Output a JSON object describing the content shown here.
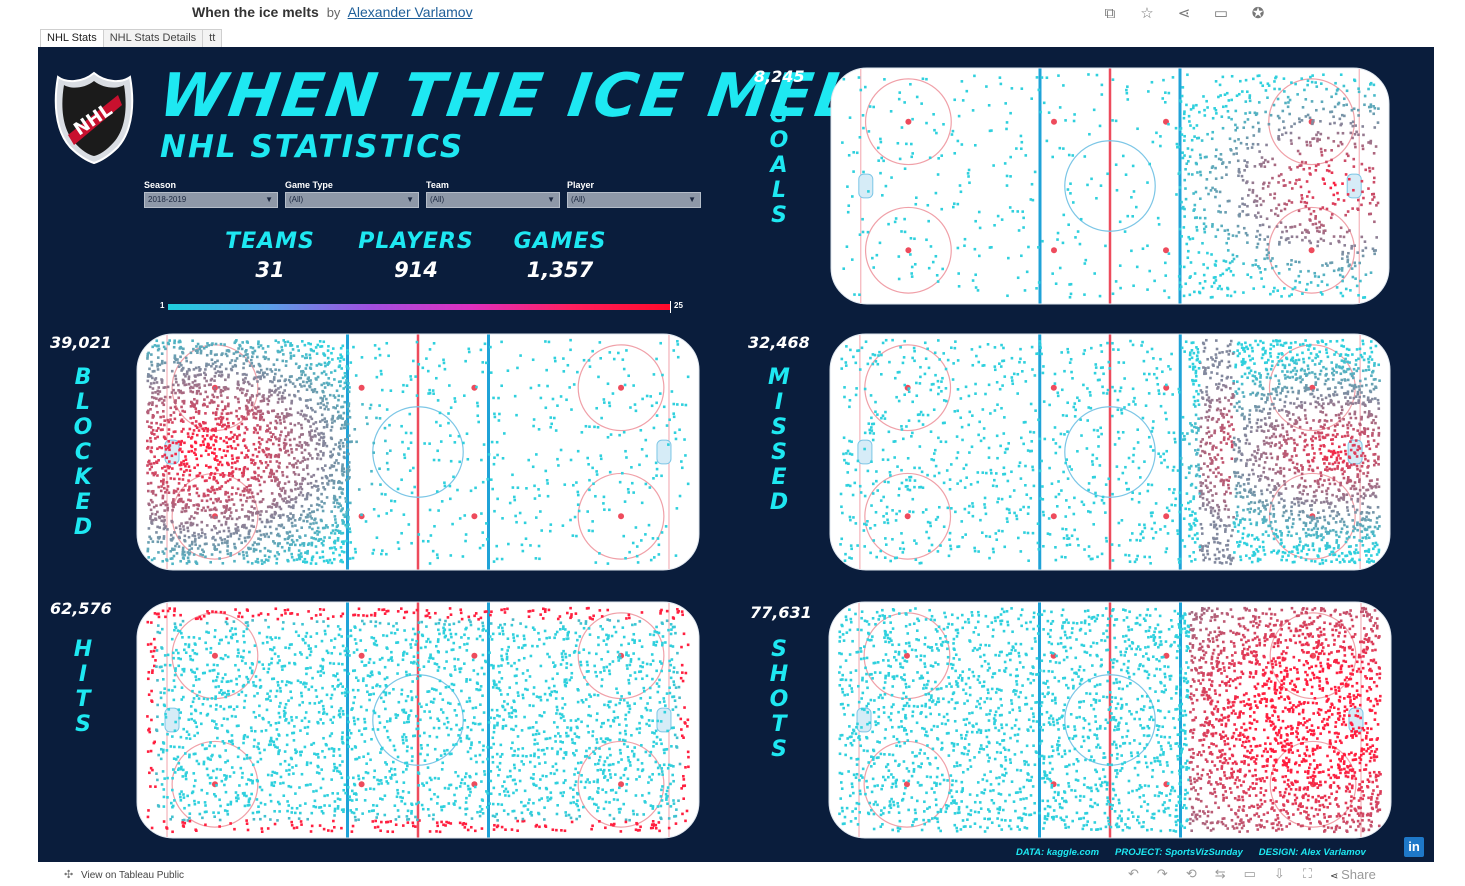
{
  "header": {
    "viz_title": "When the ice melts",
    "by": "by",
    "author": "Alexander Varlamov"
  },
  "tabs": [
    {
      "label": "NHL Stats"
    },
    {
      "label": "NHL Stats Details"
    },
    {
      "label": "tt"
    }
  ],
  "dashboard": {
    "title": "WHEN THE ICE MELTS",
    "subtitle": "NHL STATISTICS",
    "filters": [
      {
        "label": "Season",
        "value": "2018-2019"
      },
      {
        "label": "Game Type",
        "value": "(All)"
      },
      {
        "label": "Team",
        "value": "(All)"
      },
      {
        "label": "Player",
        "value": "(All)"
      }
    ],
    "kpis": [
      {
        "label": "TEAMS",
        "value": "31"
      },
      {
        "label": "PLAYERS",
        "value": "914"
      },
      {
        "label": "GAMES",
        "value": "1,357"
      }
    ],
    "legend": {
      "min": "1",
      "max": "25"
    },
    "panels": {
      "goals": {
        "label": "GOALS",
        "count": "8,245"
      },
      "blocked": {
        "label": "BLOCKED",
        "count": "39,021"
      },
      "missed": {
        "label": "MISSED",
        "count": "32,468"
      },
      "hits": {
        "label": "HITS",
        "count": "62,576"
      },
      "shots": {
        "label": "SHOTS",
        "count": "77,631"
      }
    },
    "credits": {
      "data": "DATA: kaggle.com",
      "project": "PROJECT: SportsVizSunday",
      "design": "DESIGN: Alex Varlamov"
    },
    "linkedin": "in"
  },
  "footer": {
    "view_on": "View on Tableau Public",
    "share": "Share"
  },
  "colors": {
    "background": "#0a1d3c",
    "accent": "#1ee8f2",
    "rink": "#ffffff",
    "blue_line": "#1fa3d8",
    "red_line": "#ee4b5c",
    "dot_low": "#2fd0dd",
    "dot_high": "#ff1f3f"
  }
}
